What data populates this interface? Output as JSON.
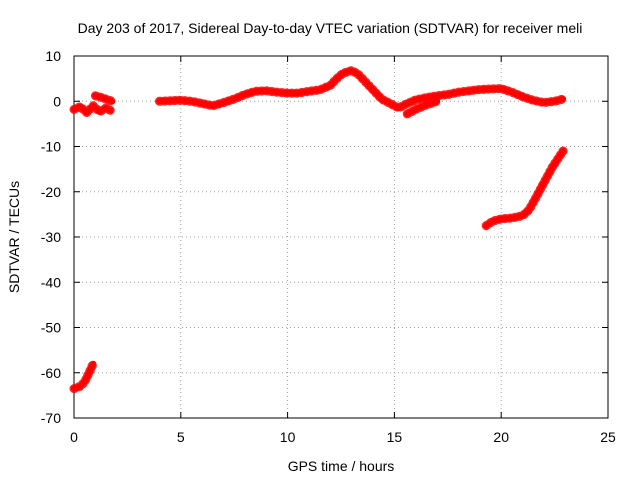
{
  "chart_data": {
    "type": "line",
    "title": "Day 203 of 2017, Sidereal Day-to-day VTEC variation (SDTVAR) for receiver meli",
    "xlabel": "GPS time / hours",
    "ylabel": "SDTVAR / TECUs",
    "xlim": [
      0,
      25
    ],
    "ylim": [
      -70,
      10
    ],
    "x_ticks": [
      0,
      5,
      10,
      15,
      20,
      25
    ],
    "y_ticks": [
      10,
      0,
      -10,
      -20,
      -30,
      -40,
      -50,
      -60,
      -70
    ],
    "grid": true,
    "series_color": "#ff0000",
    "series": [
      {
        "name": "segment-1",
        "x": [
          0.0,
          0.3,
          0.5,
          0.7,
          0.9
        ],
        "y": [
          -63.5,
          -63.0,
          -62.0,
          -60.0,
          -58.0
        ]
      },
      {
        "name": "segment-2",
        "x": [
          0.0,
          0.3,
          0.6,
          0.9,
          1.2,
          1.5,
          1.7
        ],
        "y": [
          -1.8,
          -1.2,
          -2.5,
          -1.0,
          -2.3,
          -1.5,
          -2.0
        ]
      },
      {
        "name": "segment-3",
        "x": [
          1.0,
          1.3,
          1.6,
          1.8
        ],
        "y": [
          1.2,
          0.8,
          0.3,
          0.0
        ]
      },
      {
        "name": "segment-4",
        "x": [
          4.0,
          4.5,
          5.0,
          5.5,
          6.0,
          6.5,
          7.0,
          7.5,
          8.0,
          8.5,
          9.0,
          9.5,
          10.0,
          10.5,
          11.0,
          11.5,
          12.0,
          12.3,
          12.6,
          13.0,
          13.3,
          13.6,
          14.0,
          14.4,
          14.8,
          15.2,
          15.6,
          16.0,
          16.5,
          17.0,
          17.5,
          18.0,
          18.5,
          19.0,
          19.5,
          20.0,
          20.5,
          21.0,
          21.5,
          22.0,
          22.5,
          22.9
        ],
        "y": [
          0.0,
          0.1,
          0.2,
          0.0,
          -0.5,
          -1.0,
          -0.3,
          0.5,
          1.5,
          2.2,
          2.3,
          2.0,
          1.8,
          1.8,
          2.2,
          2.5,
          3.5,
          5.0,
          6.2,
          6.8,
          6.0,
          4.5,
          2.5,
          0.5,
          -0.5,
          -1.5,
          -0.5,
          0.3,
          0.8,
          1.2,
          1.5,
          2.0,
          2.3,
          2.6,
          2.7,
          2.8,
          2.0,
          1.0,
          0.2,
          -0.3,
          0.0,
          0.5
        ]
      },
      {
        "name": "segment-5",
        "x": [
          15.6,
          16.0,
          16.5,
          17.0
        ],
        "y": [
          -2.8,
          -1.8,
          -0.8,
          0.0
        ]
      },
      {
        "name": "segment-6",
        "x": [
          19.3,
          19.6,
          20.0,
          20.5,
          21.0,
          21.3,
          21.6,
          22.0,
          22.4,
          22.9
        ],
        "y": [
          -27.5,
          -26.5,
          -26.0,
          -25.8,
          -25.3,
          -24.0,
          -21.5,
          -18.0,
          -14.5,
          -11.0
        ]
      }
    ]
  }
}
